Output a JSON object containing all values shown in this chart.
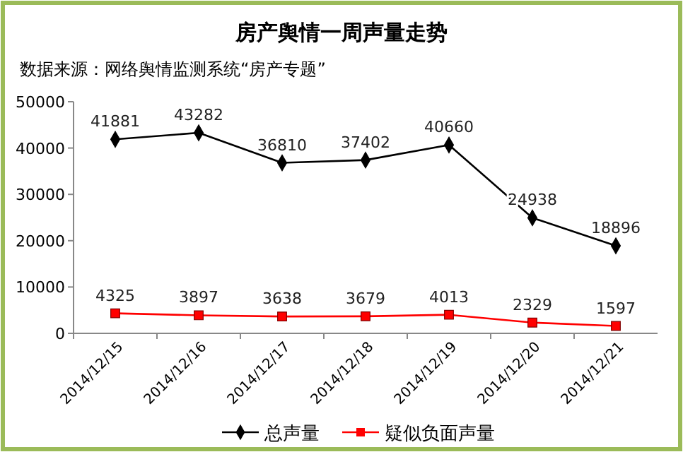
{
  "chart_data": {
    "type": "line",
    "title": "房产舆情一周声量走势",
    "subtitle": "数据来源：网络舆情监测系统“房产专题”",
    "categories": [
      "2014/12/15",
      "2014/12/16",
      "2014/12/17",
      "2014/12/18",
      "2014/12/19",
      "2014/12/20",
      "2014/12/21"
    ],
    "series": [
      {
        "name": "总声量",
        "color": "#000000",
        "marker": "diamond",
        "values": [
          41881,
          43282,
          36810,
          37402,
          40660,
          24938,
          18896
        ]
      },
      {
        "name": "疑似负面声量",
        "color": "#ff0000",
        "marker": "square",
        "values": [
          4325,
          3897,
          3638,
          3679,
          4013,
          2329,
          1597
        ]
      }
    ],
    "ylim": [
      0,
      50000
    ],
    "yticks": [
      0,
      10000,
      20000,
      30000,
      40000,
      50000
    ],
    "grid": false,
    "data_labels": true,
    "legend": "bottom"
  }
}
